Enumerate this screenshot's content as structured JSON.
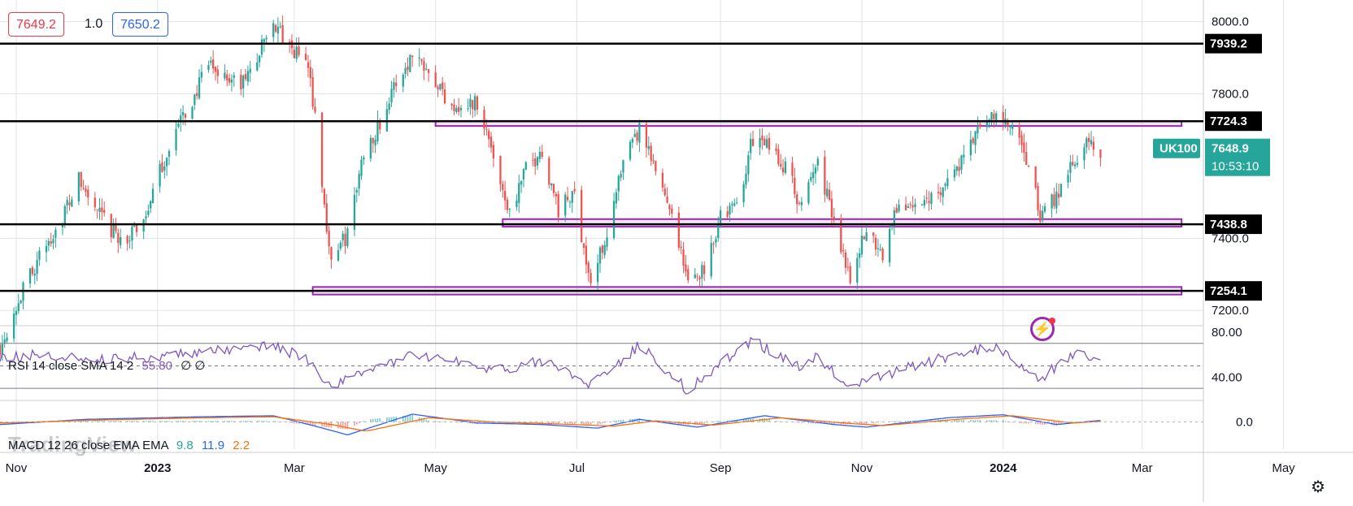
{
  "quote": {
    "bid": "7649.2",
    "spread": "1.0",
    "ask": "7650.2"
  },
  "watermark": "TradingView",
  "chart_data": {
    "type": "candlestick",
    "symbol": "UK100",
    "last_price": "7648.9",
    "countdown": "10:53:10",
    "price_axis": {
      "range": [
        7160,
        8060
      ],
      "ticks": [
        "8000.0",
        "7800.0",
        "7400.0",
        "7200.0"
      ]
    },
    "time_axis": {
      "start": "2022-10-25",
      "end": "2024-05-31",
      "labels": [
        {
          "label": "Nov",
          "date": "2022-11-01",
          "bold": false
        },
        {
          "label": "2023",
          "date": "2023-01-01",
          "bold": true
        },
        {
          "label": "Mar",
          "date": "2023-03-01",
          "bold": false
        },
        {
          "label": "May",
          "date": "2023-05-01",
          "bold": false
        },
        {
          "label": "Jul",
          "date": "2023-07-01",
          "bold": false
        },
        {
          "label": "Sep",
          "date": "2023-09-01",
          "bold": false
        },
        {
          "label": "Nov",
          "date": "2023-11-01",
          "bold": false
        },
        {
          "label": "2024",
          "date": "2024-01-01",
          "bold": true
        },
        {
          "label": "Mar",
          "date": "2024-03-01",
          "bold": false
        },
        {
          "label": "May",
          "date": "2024-05-01",
          "bold": false
        }
      ]
    },
    "horizontal_levels": [
      "7939.2",
      "7724.3",
      "7438.8",
      "7254.1"
    ],
    "zones": [
      {
        "from_date": "2023-05-01",
        "to_date": "2024-03-18",
        "top": 7725,
        "bottom": 7711
      },
      {
        "from_date": "2023-05-30",
        "to_date": "2024-03-18",
        "top": 7453,
        "bottom": 7432
      },
      {
        "from_date": "2023-03-09",
        "to_date": "2024-03-18",
        "top": 7265,
        "bottom": 7244
      }
    ],
    "close_path": [
      [
        "2022-10-25",
        7100
      ],
      [
        "2022-10-31",
        7200
      ],
      [
        "2022-11-07",
        7300
      ],
      [
        "2022-11-14",
        7380
      ],
      [
        "2022-11-21",
        7460
      ],
      [
        "2022-11-28",
        7560
      ],
      [
        "2022-12-05",
        7480
      ],
      [
        "2022-12-12",
        7420
      ],
      [
        "2022-12-19",
        7390
      ],
      [
        "2022-12-27",
        7470
      ],
      [
        "2023-01-03",
        7600
      ],
      [
        "2023-01-09",
        7700
      ],
      [
        "2023-01-16",
        7780
      ],
      [
        "2023-01-23",
        7880
      ],
      [
        "2023-01-30",
        7850
      ],
      [
        "2023-02-06",
        7820
      ],
      [
        "2023-02-13",
        7900
      ],
      [
        "2023-02-20",
        8000
      ],
      [
        "2023-02-27",
        7920
      ],
      [
        "2023-03-06",
        7900
      ],
      [
        "2023-03-10",
        7750
      ],
      [
        "2023-03-14",
        7480
      ],
      [
        "2023-03-17",
        7340
      ],
      [
        "2023-03-24",
        7410
      ],
      [
        "2023-03-31",
        7640
      ],
      [
        "2023-04-07",
        7720
      ],
      [
        "2023-04-14",
        7830
      ],
      [
        "2023-04-21",
        7910
      ],
      [
        "2023-04-28",
        7880
      ],
      [
        "2023-05-05",
        7790
      ],
      [
        "2023-05-12",
        7760
      ],
      [
        "2023-05-19",
        7780
      ],
      [
        "2023-05-26",
        7630
      ],
      [
        "2023-06-02",
        7470
      ],
      [
        "2023-06-09",
        7590
      ],
      [
        "2023-06-16",
        7640
      ],
      [
        "2023-06-23",
        7480
      ],
      [
        "2023-06-30",
        7520
      ],
      [
        "2023-07-07",
        7270
      ],
      [
        "2023-07-14",
        7420
      ],
      [
        "2023-07-21",
        7600
      ],
      [
        "2023-07-28",
        7700
      ],
      [
        "2023-08-04",
        7580
      ],
      [
        "2023-08-11",
        7480
      ],
      [
        "2023-08-18",
        7270
      ],
      [
        "2023-08-25",
        7320
      ],
      [
        "2023-09-01",
        7460
      ],
      [
        "2023-09-08",
        7490
      ],
      [
        "2023-09-15",
        7680
      ],
      [
        "2023-09-22",
        7650
      ],
      [
        "2023-09-29",
        7600
      ],
      [
        "2023-10-06",
        7480
      ],
      [
        "2023-10-13",
        7620
      ],
      [
        "2023-10-20",
        7440
      ],
      [
        "2023-10-27",
        7300
      ],
      [
        "2023-11-03",
        7420
      ],
      [
        "2023-11-10",
        7360
      ],
      [
        "2023-11-17",
        7500
      ],
      [
        "2023-11-24",
        7480
      ],
      [
        "2023-12-01",
        7520
      ],
      [
        "2023-12-08",
        7560
      ],
      [
        "2023-12-15",
        7620
      ],
      [
        "2023-12-22",
        7710
      ],
      [
        "2023-12-29",
        7740
      ],
      [
        "2024-01-05",
        7700
      ],
      [
        "2024-01-12",
        7600
      ],
      [
        "2024-01-17",
        7460
      ],
      [
        "2024-01-24",
        7520
      ],
      [
        "2024-01-31",
        7620
      ],
      [
        "2024-02-07",
        7660
      ],
      [
        "2024-02-12",
        7648
      ]
    ],
    "rsi": {
      "label": "RSI 14 close SMA 14 2",
      "value": "55.80",
      "extras": "∅ ∅",
      "ticks": [
        "80.00",
        "40.00"
      ],
      "bands": [
        70,
        30
      ],
      "range": [
        20,
        85
      ],
      "path": [
        [
          "2022-10-25",
          58
        ],
        [
          "2022-11-15",
          60
        ],
        [
          "2022-12-05",
          56
        ],
        [
          "2022-12-27",
          58
        ],
        [
          "2023-01-20",
          62
        ],
        [
          "2023-02-20",
          68
        ],
        [
          "2023-03-06",
          56
        ],
        [
          "2023-03-17",
          30
        ],
        [
          "2023-03-31",
          45
        ],
        [
          "2023-04-21",
          60
        ],
        [
          "2023-05-12",
          52
        ],
        [
          "2023-06-02",
          46
        ],
        [
          "2023-06-16",
          55
        ],
        [
          "2023-07-07",
          32
        ],
        [
          "2023-07-28",
          68
        ],
        [
          "2023-08-18",
          28
        ],
        [
          "2023-09-01",
          52
        ],
        [
          "2023-09-15",
          72
        ],
        [
          "2023-10-06",
          48
        ],
        [
          "2023-10-13",
          58
        ],
        [
          "2023-10-27",
          30
        ],
        [
          "2023-11-17",
          46
        ],
        [
          "2023-12-08",
          58
        ],
        [
          "2023-12-29",
          68
        ],
        [
          "2024-01-17",
          38
        ],
        [
          "2024-01-31",
          60
        ],
        [
          "2024-02-12",
          56
        ]
      ]
    },
    "macd": {
      "label": "MACD 12 26 close EMA EMA",
      "values": [
        "9.8",
        "11.9",
        "2.2"
      ],
      "tick": "0.0",
      "range": [
        -40,
        40
      ],
      "macd_path": [
        [
          "2022-10-25",
          -5
        ],
        [
          "2022-12-01",
          5
        ],
        [
          "2023-01-20",
          10
        ],
        [
          "2023-02-20",
          12
        ],
        [
          "2023-03-10",
          -8
        ],
        [
          "2023-03-24",
          -25
        ],
        [
          "2023-04-21",
          15
        ],
        [
          "2023-05-19",
          -2
        ],
        [
          "2023-06-16",
          -5
        ],
        [
          "2023-07-10",
          -12
        ],
        [
          "2023-07-28",
          5
        ],
        [
          "2023-08-22",
          -10
        ],
        [
          "2023-09-20",
          12
        ],
        [
          "2023-10-20",
          -5
        ],
        [
          "2023-11-03",
          -10
        ],
        [
          "2023-12-08",
          8
        ],
        [
          "2024-01-01",
          14
        ],
        [
          "2024-01-24",
          -5
        ],
        [
          "2024-02-12",
          3
        ]
      ],
      "signal_path": [
        [
          "2022-10-25",
          -2
        ],
        [
          "2022-12-01",
          3
        ],
        [
          "2023-01-20",
          8
        ],
        [
          "2023-02-20",
          10
        ],
        [
          "2023-03-17",
          -5
        ],
        [
          "2023-04-01",
          -18
        ],
        [
          "2023-04-28",
          8
        ],
        [
          "2023-05-26",
          0
        ],
        [
          "2023-06-23",
          -4
        ],
        [
          "2023-07-17",
          -8
        ],
        [
          "2023-08-04",
          2
        ],
        [
          "2023-08-29",
          -6
        ],
        [
          "2023-09-27",
          8
        ],
        [
          "2023-10-27",
          -3
        ],
        [
          "2023-11-10",
          -7
        ],
        [
          "2023-12-15",
          6
        ],
        [
          "2024-01-05",
          12
        ],
        [
          "2024-01-31",
          -2
        ],
        [
          "2024-02-12",
          1
        ]
      ]
    },
    "colors": {
      "up": "#26a69a",
      "down": "#ef5350",
      "level": "#000000",
      "zone": "#9c27b0",
      "symbol_badge": "#26a69a",
      "rsi": "#7e57c2",
      "macd": "#2962ff",
      "signal": "#ff6d00",
      "grid": "#e0e3eb",
      "divider": "#cccccc"
    }
  }
}
